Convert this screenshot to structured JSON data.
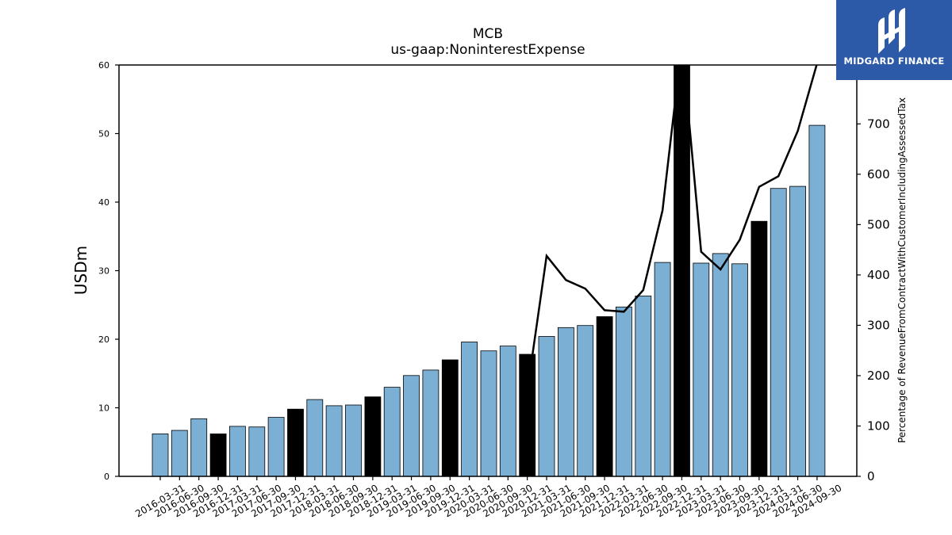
{
  "brand": {
    "name": "MIDGARD FINANCE",
    "color": "#2c5aa8"
  },
  "chart_data": {
    "type": "bar",
    "title": "MCB",
    "subtitle": "us-gaap:NoninterestExpense",
    "ylabel": "USDm",
    "y2label": "Percentage of RevenueFromContractWithCustomerIncludingAssessedTax",
    "ylim": [
      0,
      60
    ],
    "y2lim": [
      0,
      817
    ],
    "yticks": [
      0,
      10,
      20,
      30,
      40,
      50,
      60
    ],
    "y2ticks": [
      0,
      100,
      200,
      300,
      400,
      500,
      600,
      700
    ],
    "colors": {
      "quarter_bar": "#7bafd4",
      "year_end_bar": "#000000",
      "line": "#000000"
    },
    "categories": [
      "2016-03-31",
      "2016-06-30",
      "2016-09-30",
      "2016-12-31",
      "2017-03-31",
      "2017-06-30",
      "2017-09-30",
      "2017-12-31",
      "2018-03-31",
      "2018-06-30",
      "2018-09-30",
      "2018-12-31",
      "2019-03-31",
      "2019-06-30",
      "2019-09-30",
      "2019-12-31",
      "2020-03-31",
      "2020-06-30",
      "2020-09-30",
      "2020-12-31",
      "2021-03-31",
      "2021-06-30",
      "2021-09-30",
      "2021-12-31",
      "2022-03-31",
      "2022-06-30",
      "2022-09-30",
      "2022-12-31",
      "2023-03-31",
      "2023-06-30",
      "2023-09-30",
      "2023-12-31",
      "2024-03-31",
      "2024-06-30",
      "2024-09-30"
    ],
    "series": [
      {
        "type": "bar",
        "axis": "left",
        "values": [
          6.2,
          6.7,
          8.4,
          6.2,
          7.3,
          7.2,
          8.6,
          9.8,
          11.2,
          10.3,
          10.4,
          11.6,
          13.0,
          14.7,
          15.5,
          17.0,
          19.6,
          18.3,
          19.0,
          17.8,
          20.4,
          21.7,
          22.0,
          23.3,
          24.7,
          26.3,
          31.2,
          60.0,
          31.1,
          32.5,
          31.0,
          37.2,
          42.0,
          42.3,
          51.2
        ]
      },
      {
        "type": "line",
        "axis": "right",
        "values": [
          null,
          null,
          null,
          null,
          null,
          null,
          null,
          null,
          null,
          null,
          null,
          null,
          null,
          null,
          null,
          null,
          null,
          null,
          null,
          170,
          438,
          390,
          373,
          330,
          327,
          370,
          528,
          860,
          446,
          411,
          470,
          575,
          596,
          686,
          820
        ]
      }
    ]
  }
}
